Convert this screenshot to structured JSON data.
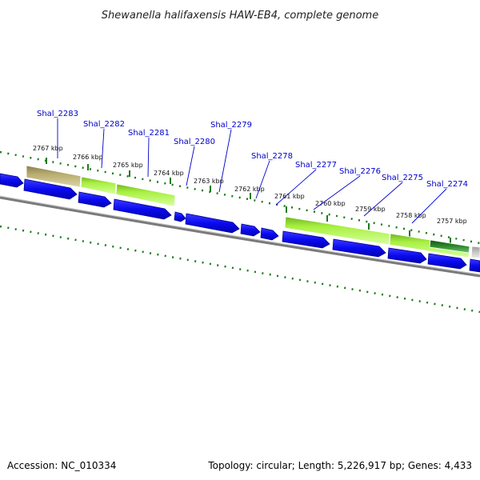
{
  "title": "Shewanella halifaxensis HAW-EB4, complete genome",
  "footer": {
    "accession": "Accession: NC_010334",
    "summary": "Topology: circular; Length: 5,226,917 bp; Genes: 4,433"
  },
  "colors": {
    "cds": "#0a0af0",
    "cds_edge": "#00009a",
    "match_green": "#a8f040",
    "match_olive": "#b8ad70",
    "match_dark_green": "#2e8b2e",
    "match_grey": "#c8c8c8",
    "gc_dots": "#1e7a1e",
    "backbone": "#7a7a7a"
  },
  "ticks": [
    {
      "label": "2767 kbp"
    },
    {
      "label": "2766 kbp"
    },
    {
      "label": "2765 kbp"
    },
    {
      "label": "2764 kbp"
    },
    {
      "label": "2763 kbp"
    },
    {
      "label": "2762 kbp"
    },
    {
      "label": "2761 kbp"
    },
    {
      "label": "2760 kbp"
    },
    {
      "label": "2759 kbp"
    },
    {
      "label": "2758 kbp"
    },
    {
      "label": "2757 kbp"
    }
  ],
  "genes": [
    {
      "label": "Shal_2283"
    },
    {
      "label": "Shal_2282"
    },
    {
      "label": "Shal_2281"
    },
    {
      "label": "Shal_2280"
    },
    {
      "label": "Shal_2279"
    },
    {
      "label": "Shal_2278"
    },
    {
      "label": "Shal_2277"
    },
    {
      "label": "Shal_2276"
    },
    {
      "label": "Shal_2275"
    },
    {
      "label": "Shal_2274"
    }
  ]
}
